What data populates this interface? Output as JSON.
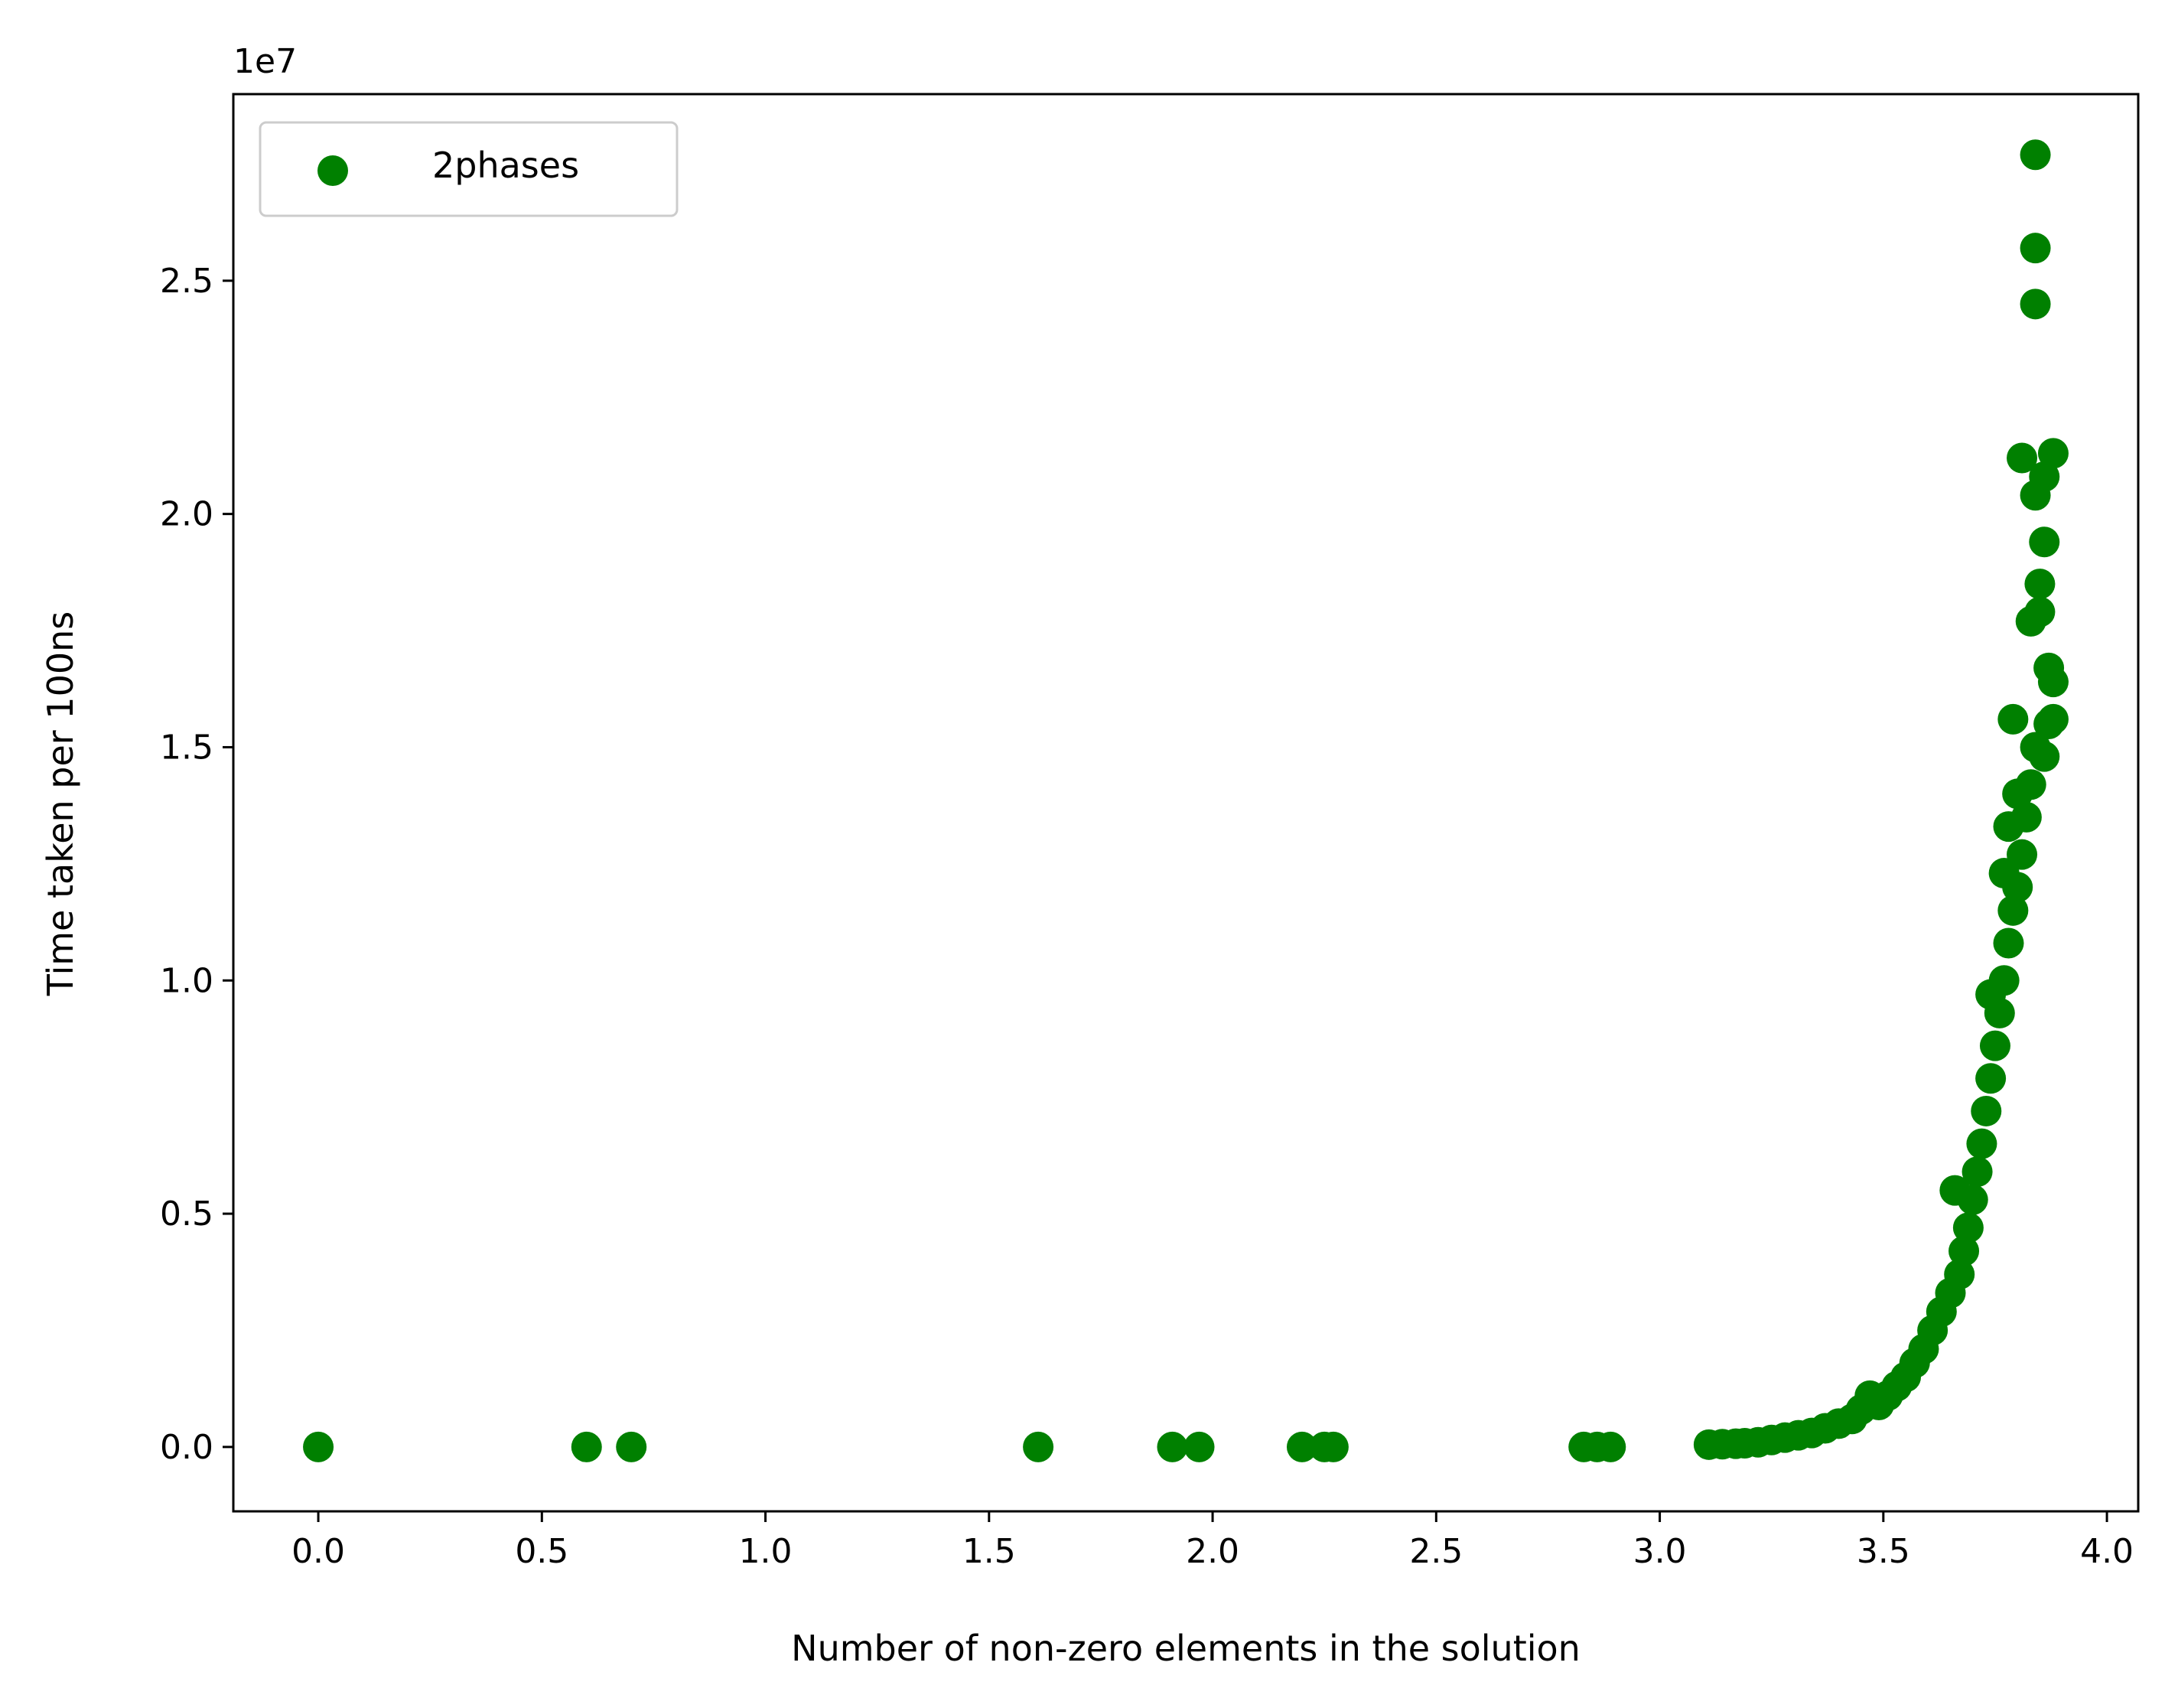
{
  "chart_data": {
    "type": "scatter",
    "xlabel": "Number of non-zero elements in the solution",
    "ylabel": "Time taken per 100ns",
    "y_scale_note": "1e7",
    "xlim": [
      -0.19,
      4.07
    ],
    "ylim": [
      -0.138,
      2.9
    ],
    "x_ticks": [
      0.0,
      0.5,
      1.0,
      1.5,
      2.0,
      2.5,
      3.0,
      3.5,
      4.0
    ],
    "x_tick_labels": [
      "0.0",
      "0.5",
      "1.0",
      "1.5",
      "2.0",
      "2.5",
      "3.0",
      "3.5",
      "4.0"
    ],
    "y_ticks": [
      0.0,
      0.5,
      1.0,
      1.5,
      2.0,
      2.5
    ],
    "y_tick_labels": [
      "0.0",
      "0.5",
      "1.0",
      "1.5",
      "2.0",
      "2.5"
    ],
    "grid": false,
    "legend": {
      "position": "upper-left",
      "entries": [
        "2phases"
      ]
    },
    "series": [
      {
        "name": "2phases",
        "color": "#008000",
        "points": [
          [
            0.0,
            0.0
          ],
          [
            0.6,
            0.0
          ],
          [
            0.7,
            0.0
          ],
          [
            1.61,
            0.0
          ],
          [
            1.91,
            0.0
          ],
          [
            1.97,
            0.0
          ],
          [
            2.2,
            0.0
          ],
          [
            2.25,
            0.0
          ],
          [
            2.27,
            0.0
          ],
          [
            2.83,
            0.0
          ],
          [
            2.86,
            0.0
          ],
          [
            2.89,
            0.0
          ],
          [
            3.11,
            0.005
          ],
          [
            3.14,
            0.006
          ],
          [
            3.17,
            0.007
          ],
          [
            3.19,
            0.008
          ],
          [
            3.22,
            0.01
          ],
          [
            3.25,
            0.015
          ],
          [
            3.28,
            0.02
          ],
          [
            3.31,
            0.025
          ],
          [
            3.34,
            0.03
          ],
          [
            3.37,
            0.04
          ],
          [
            3.4,
            0.05
          ],
          [
            3.43,
            0.06
          ],
          [
            3.45,
            0.08
          ],
          [
            3.47,
            0.1
          ],
          [
            3.47,
            0.11
          ],
          [
            3.49,
            0.09
          ],
          [
            3.51,
            0.11
          ],
          [
            3.53,
            0.13
          ],
          [
            3.55,
            0.15
          ],
          [
            3.57,
            0.18
          ],
          [
            3.59,
            0.21
          ],
          [
            3.61,
            0.25
          ],
          [
            3.63,
            0.29
          ],
          [
            3.65,
            0.33
          ],
          [
            3.66,
            0.55
          ],
          [
            3.67,
            0.37
          ],
          [
            3.68,
            0.42
          ],
          [
            3.69,
            0.47
          ],
          [
            3.7,
            0.53
          ],
          [
            3.71,
            0.59
          ],
          [
            3.72,
            0.65
          ],
          [
            3.73,
            0.72
          ],
          [
            3.74,
            0.79
          ],
          [
            3.74,
            0.97
          ],
          [
            3.75,
            0.86
          ],
          [
            3.76,
            0.93
          ],
          [
            3.77,
            1.0
          ],
          [
            3.77,
            1.23
          ],
          [
            3.78,
            1.08
          ],
          [
            3.78,
            1.33
          ],
          [
            3.79,
            1.15
          ],
          [
            3.79,
            1.56
          ],
          [
            3.8,
            1.2
          ],
          [
            3.8,
            1.4
          ],
          [
            3.81,
            1.27
          ],
          [
            3.81,
            2.12
          ],
          [
            3.82,
            1.35
          ],
          [
            3.83,
            1.42
          ],
          [
            3.83,
            1.77
          ],
          [
            3.84,
            1.5
          ],
          [
            3.84,
            2.04
          ],
          [
            3.84,
            2.45
          ],
          [
            3.84,
            2.57
          ],
          [
            3.84,
            2.77
          ],
          [
            3.85,
            1.85
          ],
          [
            3.85,
            1.79
          ],
          [
            3.86,
            1.94
          ],
          [
            3.86,
            2.08
          ],
          [
            3.86,
            1.48
          ],
          [
            3.87,
            1.55
          ],
          [
            3.87,
            1.67
          ],
          [
            3.88,
            2.13
          ],
          [
            3.88,
            1.64
          ],
          [
            3.88,
            1.56
          ]
        ]
      }
    ]
  }
}
